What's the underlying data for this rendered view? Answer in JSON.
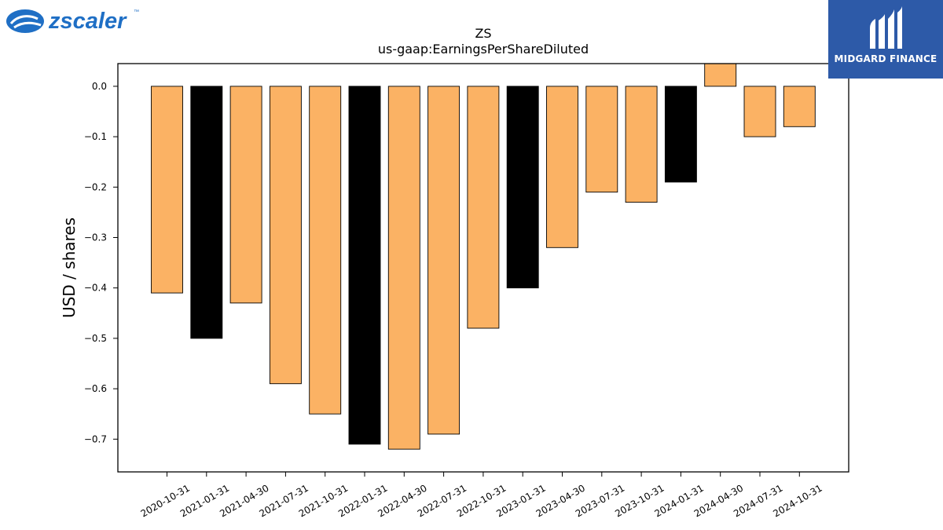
{
  "logos": {
    "left_text": "zscaler",
    "left_tm": "™",
    "right_text": "MIDGARD FINANCE",
    "brand_color_left": "#1f6fc5",
    "brand_color_right": "#2d5aa8"
  },
  "chart_data": {
    "type": "bar",
    "title": "ZS",
    "subtitle": "us-gaap:EarningsPerShareDiluted",
    "xlabel": "",
    "ylabel": "USD / shares",
    "ylim": [
      -0.765,
      0.045
    ],
    "yticks": [
      0.0,
      -0.1,
      -0.2,
      -0.3,
      -0.4,
      -0.5,
      -0.6,
      -0.7
    ],
    "ytick_labels": [
      "0.0",
      "−0.1",
      "−0.2",
      "−0.3",
      "−0.4",
      "−0.5",
      "−0.6",
      "−0.7"
    ],
    "grid": false,
    "categories": [
      "2020-10-31",
      "2021-01-31",
      "2021-04-30",
      "2021-07-31",
      "2021-10-31",
      "2022-01-31",
      "2022-04-30",
      "2022-07-31",
      "2022-10-31",
      "2023-01-31",
      "2023-04-30",
      "2023-07-31",
      "2023-10-31",
      "2024-01-31",
      "2024-04-30",
      "2024-07-31",
      "2024-10-31"
    ],
    "values": [
      -0.41,
      -0.5,
      -0.43,
      -0.59,
      -0.65,
      -0.71,
      -0.72,
      -0.69,
      -0.48,
      -0.4,
      -0.32,
      -0.21,
      -0.23,
      -0.19,
      0.05,
      -0.1,
      -0.08
    ],
    "bar_colors": [
      "#fbb264",
      "#000000",
      "#fbb264",
      "#fbb264",
      "#fbb264",
      "#000000",
      "#fbb264",
      "#fbb264",
      "#fbb264",
      "#000000",
      "#fbb264",
      "#fbb264",
      "#fbb264",
      "#000000",
      "#fbb264",
      "#fbb264",
      "#fbb264"
    ]
  }
}
